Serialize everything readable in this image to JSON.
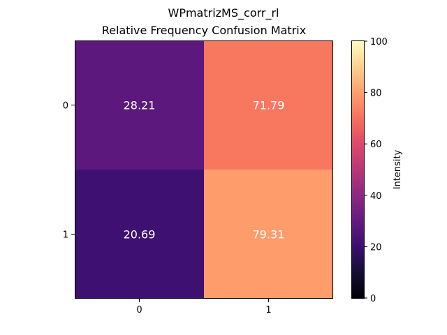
{
  "chart_data": {
    "type": "heatmap",
    "title": "WPmatrizMS_corr_rl",
    "subtitle": "Relative Frequency Confusion Matrix",
    "x_categories": [
      "0",
      "1"
    ],
    "y_categories": [
      "0",
      "1"
    ],
    "values": [
      [
        28.21,
        71.79
      ],
      [
        20.69,
        79.31
      ]
    ],
    "cell_labels": [
      [
        "28.21",
        "71.79"
      ],
      [
        "20.69",
        "79.31"
      ]
    ],
    "colormap": "magma",
    "colorbar": {
      "label": "Intensity",
      "range": [
        0,
        100
      ],
      "ticks": [
        0,
        20,
        40,
        60,
        80,
        100
      ]
    },
    "colors": {
      "cell_text": "#ffffff",
      "axis": "#000000"
    }
  }
}
